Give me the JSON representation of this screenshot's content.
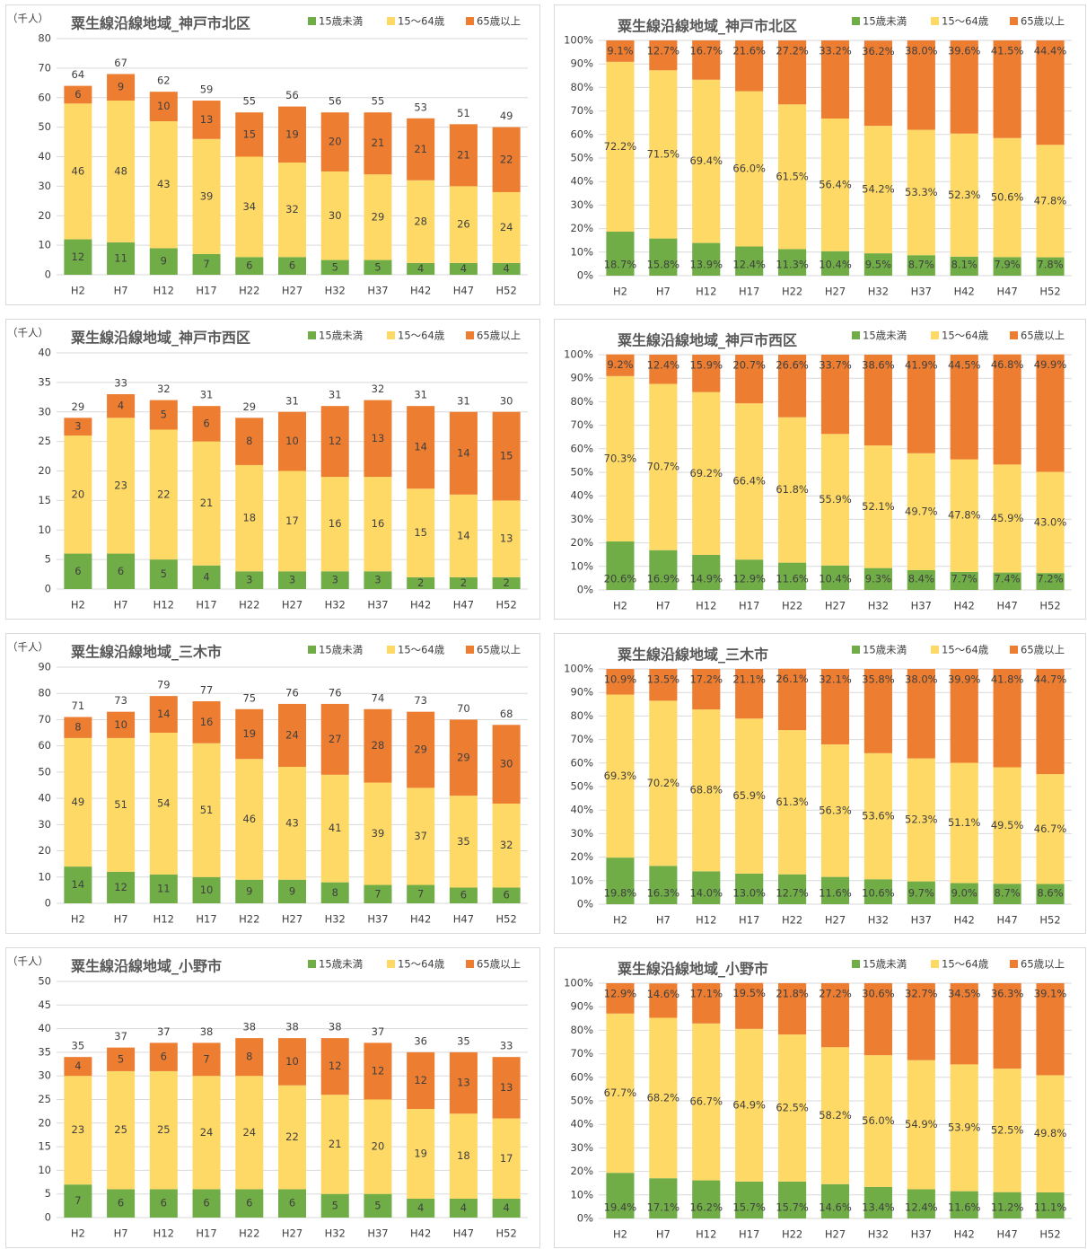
{
  "chart_data": [
    {
      "type": "bar",
      "stacked": true,
      "title": "粟生線沿線地域_神戸市北区",
      "ylabel": "（千人）",
      "categories": [
        "H2",
        "H7",
        "H12",
        "H17",
        "H22",
        "H27",
        "H32",
        "H37",
        "H42",
        "H47",
        "H52"
      ],
      "series": [
        {
          "name": "15歳未満",
          "color": "#70ad47",
          "values": [
            12,
            11,
            9,
            7,
            6,
            6,
            5,
            5,
            4,
            4,
            4
          ]
        },
        {
          "name": "15～64歳",
          "color": "#ffd966",
          "values": [
            46,
            48,
            43,
            39,
            34,
            32,
            30,
            29,
            28,
            26,
            24
          ]
        },
        {
          "name": "65歳以上",
          "color": "#ed7d31",
          "values": [
            6,
            9,
            10,
            13,
            15,
            19,
            20,
            21,
            21,
            21,
            22
          ]
        }
      ],
      "totals": [
        64,
        67,
        62,
        59,
        55,
        56,
        56,
        55,
        53,
        51,
        49
      ],
      "ylim": [
        0,
        80
      ],
      "yticks": [
        0,
        10,
        20,
        30,
        40,
        50,
        60,
        70,
        80
      ],
      "legend": "top-right"
    },
    {
      "type": "bar",
      "stacked": true,
      "title": "粟生線沿線地域_神戸市北区",
      "categories": [
        "H2",
        "H7",
        "H12",
        "H17",
        "H22",
        "H27",
        "H32",
        "H37",
        "H42",
        "H47",
        "H52"
      ],
      "series": [
        {
          "name": "15歳未満",
          "color": "#70ad47",
          "values": [
            18.7,
            15.8,
            13.9,
            12.4,
            11.3,
            10.4,
            9.5,
            8.7,
            8.1,
            7.9,
            7.8
          ],
          "value_labels": [
            "18.7%",
            "15.8%",
            "13.9%",
            "12.4%",
            "11.3%",
            "10.4%",
            "9.5%",
            "8.7%",
            "8.1%",
            "7.9%",
            "7.8%"
          ]
        },
        {
          "name": "15～64歳",
          "color": "#ffd966",
          "values": [
            72.2,
            71.5,
            69.4,
            66.0,
            61.5,
            56.4,
            54.2,
            53.3,
            52.3,
            50.6,
            47.8
          ],
          "value_labels": [
            "72.2%",
            "71.5%",
            "69.4%",
            "66.0%",
            "61.5%",
            "56.4%",
            "54.2%",
            "53.3%",
            "52.3%",
            "50.6%",
            "47.8%"
          ]
        },
        {
          "name": "65歳以上",
          "color": "#ed7d31",
          "values": [
            9.1,
            12.7,
            16.7,
            21.6,
            27.2,
            33.2,
            36.2,
            38.0,
            39.6,
            41.5,
            44.4
          ],
          "value_labels": [
            "9.1%",
            "12.7%",
            "16.7%",
            "21.6%",
            "27.2%",
            "33.2%",
            "36.2%",
            "38.0%",
            "39.6%",
            "41.5%",
            "44.4%"
          ]
        }
      ],
      "ylim": [
        0,
        100
      ],
      "yticks": [
        {
          "value": 0,
          "label": "0%"
        },
        {
          "value": 10,
          "label": "10%"
        },
        {
          "value": 20,
          "label": "20%"
        },
        {
          "value": 30,
          "label": "30%"
        },
        {
          "value": 40,
          "label": "40%"
        },
        {
          "value": 50,
          "label": "50%"
        },
        {
          "value": 60,
          "label": "60%"
        },
        {
          "value": 70,
          "label": "70%"
        },
        {
          "value": 80,
          "label": "80%"
        },
        {
          "value": 90,
          "label": "90%"
        },
        {
          "value": 100,
          "label": "100%"
        }
      ],
      "legend": "top-right"
    },
    {
      "type": "bar",
      "stacked": true,
      "title": "粟生線沿線地域_神戸市西区",
      "ylabel": "（千人）",
      "categories": [
        "H2",
        "H7",
        "H12",
        "H17",
        "H22",
        "H27",
        "H32",
        "H37",
        "H42",
        "H47",
        "H52"
      ],
      "series": [
        {
          "name": "15歳未満",
          "color": "#70ad47",
          "values": [
            6,
            6,
            5,
            4,
            3,
            3,
            3,
            3,
            2,
            2,
            2
          ]
        },
        {
          "name": "15～64歳",
          "color": "#ffd966",
          "values": [
            20,
            23,
            22,
            21,
            18,
            17,
            16,
            16,
            15,
            14,
            13
          ]
        },
        {
          "name": "65歳以上",
          "color": "#ed7d31",
          "values": [
            3,
            4,
            5,
            6,
            8,
            10,
            12,
            13,
            14,
            14,
            15
          ]
        }
      ],
      "totals": [
        29,
        33,
        32,
        31,
        29,
        31,
        31,
        32,
        31,
        31,
        30
      ],
      "ylim": [
        0,
        40
      ],
      "yticks": [
        0,
        5,
        10,
        15,
        20,
        25,
        30,
        35,
        40
      ],
      "legend": "top-right"
    },
    {
      "type": "bar",
      "stacked": true,
      "title": "粟生線沿線地域_神戸市西区",
      "categories": [
        "H2",
        "H7",
        "H12",
        "H17",
        "H22",
        "H27",
        "H32",
        "H37",
        "H42",
        "H47",
        "H52"
      ],
      "series": [
        {
          "name": "15歳未満",
          "color": "#70ad47",
          "values": [
            20.6,
            16.9,
            14.9,
            12.9,
            11.6,
            10.4,
            9.3,
            8.4,
            7.7,
            7.4,
            7.2
          ],
          "value_labels": [
            "20.6%",
            "16.9%",
            "14.9%",
            "12.9%",
            "11.6%",
            "10.4%",
            "9.3%",
            "8.4%",
            "7.7%",
            "7.4%",
            "7.2%"
          ]
        },
        {
          "name": "15～64歳",
          "color": "#ffd966",
          "values": [
            70.3,
            70.7,
            69.2,
            66.4,
            61.8,
            55.9,
            52.1,
            49.7,
            47.8,
            45.9,
            43.0
          ],
          "value_labels": [
            "70.3%",
            "70.7%",
            "69.2%",
            "66.4%",
            "61.8%",
            "55.9%",
            "52.1%",
            "49.7%",
            "47.8%",
            "45.9%",
            "43.0%"
          ]
        },
        {
          "name": "65歳以上",
          "color": "#ed7d31",
          "values": [
            9.2,
            12.4,
            15.9,
            20.7,
            26.6,
            33.7,
            38.6,
            41.9,
            44.5,
            46.8,
            49.9
          ],
          "value_labels": [
            "9.2%",
            "12.4%",
            "15.9%",
            "20.7%",
            "26.6%",
            "33.7%",
            "38.6%",
            "41.9%",
            "44.5%",
            "46.8%",
            "49.9%"
          ]
        }
      ],
      "ylim": [
        0,
        100
      ],
      "yticks": [
        {
          "value": 0,
          "label": "0%"
        },
        {
          "value": 10,
          "label": "10%"
        },
        {
          "value": 20,
          "label": "20%"
        },
        {
          "value": 30,
          "label": "30%"
        },
        {
          "value": 40,
          "label": "40%"
        },
        {
          "value": 50,
          "label": "50%"
        },
        {
          "value": 60,
          "label": "60%"
        },
        {
          "value": 70,
          "label": "70%"
        },
        {
          "value": 80,
          "label": "80%"
        },
        {
          "value": 90,
          "label": "90%"
        },
        {
          "value": 100,
          "label": "100%"
        }
      ],
      "legend": "top-right"
    },
    {
      "type": "bar",
      "stacked": true,
      "title": "粟生線沿線地域_三木市",
      "ylabel": "（千人）",
      "categories": [
        "H2",
        "H7",
        "H12",
        "H17",
        "H22",
        "H27",
        "H32",
        "H37",
        "H42",
        "H47",
        "H52"
      ],
      "series": [
        {
          "name": "15歳未満",
          "color": "#70ad47",
          "values": [
            14,
            12,
            11,
            10,
            9,
            9,
            8,
            7,
            7,
            6,
            6
          ]
        },
        {
          "name": "15～64歳",
          "color": "#ffd966",
          "values": [
            49,
            51,
            54,
            51,
            46,
            43,
            41,
            39,
            37,
            35,
            32
          ]
        },
        {
          "name": "65歳以上",
          "color": "#ed7d31",
          "values": [
            8,
            10,
            14,
            16,
            19,
            24,
            27,
            28,
            29,
            29,
            30
          ]
        }
      ],
      "totals": [
        71,
        73,
        79,
        77,
        75,
        76,
        76,
        74,
        73,
        70,
        68
      ],
      "ylim": [
        0,
        90
      ],
      "yticks": [
        0,
        10,
        20,
        30,
        40,
        50,
        60,
        70,
        80,
        90
      ],
      "legend": "top-right"
    },
    {
      "type": "bar",
      "stacked": true,
      "title": "粟生線沿線地域_三木市",
      "categories": [
        "H2",
        "H7",
        "H12",
        "H17",
        "H22",
        "H27",
        "H32",
        "H37",
        "H42",
        "H47",
        "H52"
      ],
      "series": [
        {
          "name": "15歳未満",
          "color": "#70ad47",
          "values": [
            19.8,
            16.3,
            14.0,
            13.0,
            12.7,
            11.6,
            10.6,
            9.7,
            9.0,
            8.7,
            8.6
          ],
          "value_labels": [
            "19.8%",
            "16.3%",
            "14.0%",
            "13.0%",
            "12.7%",
            "11.6%",
            "10.6%",
            "9.7%",
            "9.0%",
            "8.7%",
            "8.6%"
          ]
        },
        {
          "name": "15～64歳",
          "color": "#ffd966",
          "values": [
            69.3,
            70.2,
            68.8,
            65.9,
            61.3,
            56.3,
            53.6,
            52.3,
            51.1,
            49.5,
            46.7
          ],
          "value_labels": [
            "69.3%",
            "70.2%",
            "68.8%",
            "65.9%",
            "61.3%",
            "56.3%",
            "53.6%",
            "52.3%",
            "51.1%",
            "49.5%",
            "46.7%"
          ]
        },
        {
          "name": "65歳以上",
          "color": "#ed7d31",
          "values": [
            10.9,
            13.5,
            17.2,
            21.1,
            26.1,
            32.1,
            35.8,
            38.0,
            39.9,
            41.8,
            44.7
          ],
          "value_labels": [
            "10.9%",
            "13.5%",
            "17.2%",
            "21.1%",
            "26.1%",
            "32.1%",
            "35.8%",
            "38.0%",
            "39.9%",
            "41.8%",
            "44.7%"
          ]
        }
      ],
      "ylim": [
        0,
        100
      ],
      "yticks": [
        {
          "value": 0,
          "label": "0%"
        },
        {
          "value": 10,
          "label": "10%"
        },
        {
          "value": 20,
          "label": "20%"
        },
        {
          "value": 30,
          "label": "30%"
        },
        {
          "value": 40,
          "label": "40%"
        },
        {
          "value": 50,
          "label": "50%"
        },
        {
          "value": 60,
          "label": "60%"
        },
        {
          "value": 70,
          "label": "70%"
        },
        {
          "value": 80,
          "label": "80%"
        },
        {
          "value": 90,
          "label": "90%"
        },
        {
          "value": 100,
          "label": "100%"
        }
      ],
      "legend": "top-right"
    },
    {
      "type": "bar",
      "stacked": true,
      "title": "粟生線沿線地域_小野市",
      "ylabel": "（千人）",
      "categories": [
        "H2",
        "H7",
        "H12",
        "H17",
        "H22",
        "H27",
        "H32",
        "H37",
        "H42",
        "H47",
        "H52"
      ],
      "series": [
        {
          "name": "15歳未満",
          "color": "#70ad47",
          "values": [
            7,
            6,
            6,
            6,
            6,
            6,
            5,
            5,
            4,
            4,
            4
          ]
        },
        {
          "name": "15～64歳",
          "color": "#ffd966",
          "values": [
            23,
            25,
            25,
            24,
            24,
            22,
            21,
            20,
            19,
            18,
            17
          ]
        },
        {
          "name": "65歳以上",
          "color": "#ed7d31",
          "values": [
            4,
            5,
            6,
            7,
            8,
            10,
            12,
            12,
            12,
            13,
            13
          ]
        }
      ],
      "totals": [
        35,
        37,
        37,
        38,
        38,
        38,
        38,
        37,
        36,
        35,
        33
      ],
      "ylim": [
        0,
        50
      ],
      "yticks": [
        0,
        5,
        10,
        15,
        20,
        25,
        30,
        35,
        40,
        45,
        50
      ],
      "legend": "top-right"
    },
    {
      "type": "bar",
      "stacked": true,
      "title": "粟生線沿線地域_小野市",
      "categories": [
        "H2",
        "H7",
        "H12",
        "H17",
        "H22",
        "H27",
        "H32",
        "H37",
        "H42",
        "H47",
        "H52"
      ],
      "series": [
        {
          "name": "15歳未満",
          "color": "#70ad47",
          "values": [
            19.4,
            17.1,
            16.2,
            15.7,
            15.7,
            14.6,
            13.4,
            12.4,
            11.6,
            11.2,
            11.1
          ],
          "value_labels": [
            "19.4%",
            "17.1%",
            "16.2%",
            "15.7%",
            "15.7%",
            "14.6%",
            "13.4%",
            "12.4%",
            "11.6%",
            "11.2%",
            "11.1%"
          ]
        },
        {
          "name": "15～64歳",
          "color": "#ffd966",
          "values": [
            67.7,
            68.2,
            66.7,
            64.9,
            62.5,
            58.2,
            56.0,
            54.9,
            53.9,
            52.5,
            49.8
          ],
          "value_labels": [
            "67.7%",
            "68.2%",
            "66.7%",
            "64.9%",
            "62.5%",
            "58.2%",
            "56.0%",
            "54.9%",
            "53.9%",
            "52.5%",
            "49.8%"
          ]
        },
        {
          "name": "65歳以上",
          "color": "#ed7d31",
          "values": [
            12.9,
            14.6,
            17.1,
            19.5,
            21.8,
            27.2,
            30.6,
            32.7,
            34.5,
            36.3,
            39.1
          ],
          "value_labels": [
            "12.9%",
            "14.6%",
            "17.1%",
            "19.5%",
            "21.8%",
            "27.2%",
            "30.6%",
            "32.7%",
            "34.5%",
            "36.3%",
            "39.1%"
          ]
        }
      ],
      "ylim": [
        0,
        100
      ],
      "yticks": [
        {
          "value": 0,
          "label": "0%"
        },
        {
          "value": 10,
          "label": "10%"
        },
        {
          "value": 20,
          "label": "20%"
        },
        {
          "value": 30,
          "label": "30%"
        },
        {
          "value": 40,
          "label": "40%"
        },
        {
          "value": 50,
          "label": "50%"
        },
        {
          "value": 60,
          "label": "60%"
        },
        {
          "value": 70,
          "label": "70%"
        },
        {
          "value": 80,
          "label": "80%"
        },
        {
          "value": 90,
          "label": "90%"
        },
        {
          "value": 100,
          "label": "100%"
        }
      ],
      "legend": "top-right"
    }
  ]
}
